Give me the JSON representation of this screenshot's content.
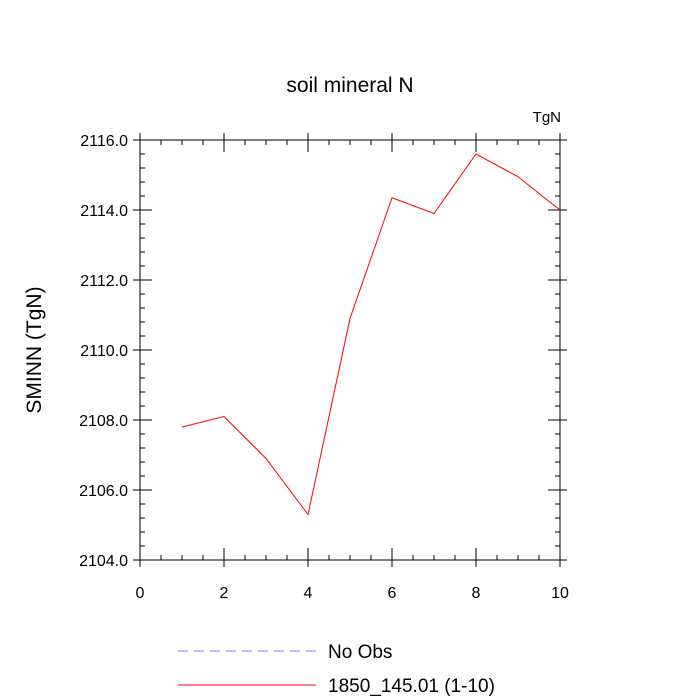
{
  "chart_data": {
    "type": "line",
    "title": "soil mineral N",
    "units_label": "TgN",
    "xlabel": "",
    "ylabel": "SMINN  (TgN)",
    "xlim": [
      0,
      10
    ],
    "ylim": [
      2104.0,
      2116.0
    ],
    "x_ticks": [
      0,
      2,
      4,
      6,
      8,
      10
    ],
    "x_tick_labels": [
      "0",
      "2",
      "4",
      "6",
      "8",
      "10"
    ],
    "y_ticks": [
      2104.0,
      2106.0,
      2108.0,
      2110.0,
      2112.0,
      2114.0,
      2116.0
    ],
    "y_tick_labels": [
      "2104.0",
      "2106.0",
      "2108.0",
      "2110.0",
      "2112.0",
      "2114.0",
      "2116.0"
    ],
    "grid": false,
    "legend_position": "bottom",
    "series": [
      {
        "name": "No Obs",
        "color": "#7a7aff",
        "dashed": true,
        "x": [],
        "values": []
      },
      {
        "name": "1850_145.01 (1-10)",
        "color": "#ff0000",
        "dashed": false,
        "x": [
          1,
          2,
          3,
          4,
          5,
          6,
          7,
          8,
          9,
          10
        ],
        "values": [
          2107.8,
          2108.1,
          2106.9,
          2105.3,
          2110.9,
          2114.35,
          2113.9,
          2115.6,
          2114.95,
          2114.0
        ]
      }
    ]
  }
}
